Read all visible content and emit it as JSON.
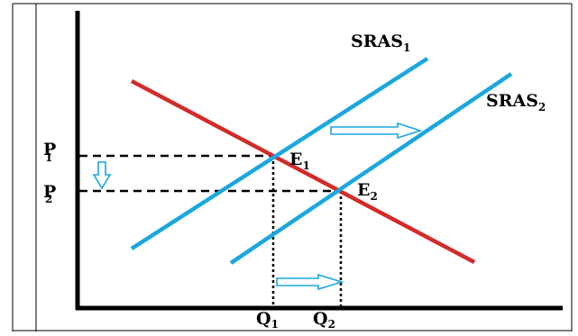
{
  "diagram": {
    "curves": [
      {
        "id": "demand",
        "label": "",
        "color": "#d42a2a"
      },
      {
        "id": "sras1",
        "label": "SRAS",
        "subscript": "1",
        "color": "#1aa7dd"
      },
      {
        "id": "sras2",
        "label": "SRAS",
        "subscript": "2",
        "color": "#1aa7dd"
      }
    ],
    "equilibria": [
      {
        "id": "e1",
        "label": "E",
        "subscript": "1"
      },
      {
        "id": "e2",
        "label": "E",
        "subscript": "2"
      }
    ],
    "price_levels": [
      {
        "id": "p1",
        "label": "P",
        "subscript": "1"
      },
      {
        "id": "p2",
        "label": "P",
        "subscript": "2"
      }
    ],
    "quantity_levels": [
      {
        "id": "q1",
        "label": "Q",
        "subscript": "1"
      },
      {
        "id": "q2",
        "label": "Q",
        "subscript": "2"
      }
    ],
    "arrows": [
      {
        "id": "supply-shift-arrow",
        "direction": "right"
      },
      {
        "id": "quantity-increase-arrow",
        "direction": "right"
      },
      {
        "id": "price-decrease-arrow",
        "direction": "down"
      }
    ],
    "colors": {
      "axis": "#000000",
      "arrow_outline": "#1aa7dd",
      "guide": "#000000"
    }
  }
}
